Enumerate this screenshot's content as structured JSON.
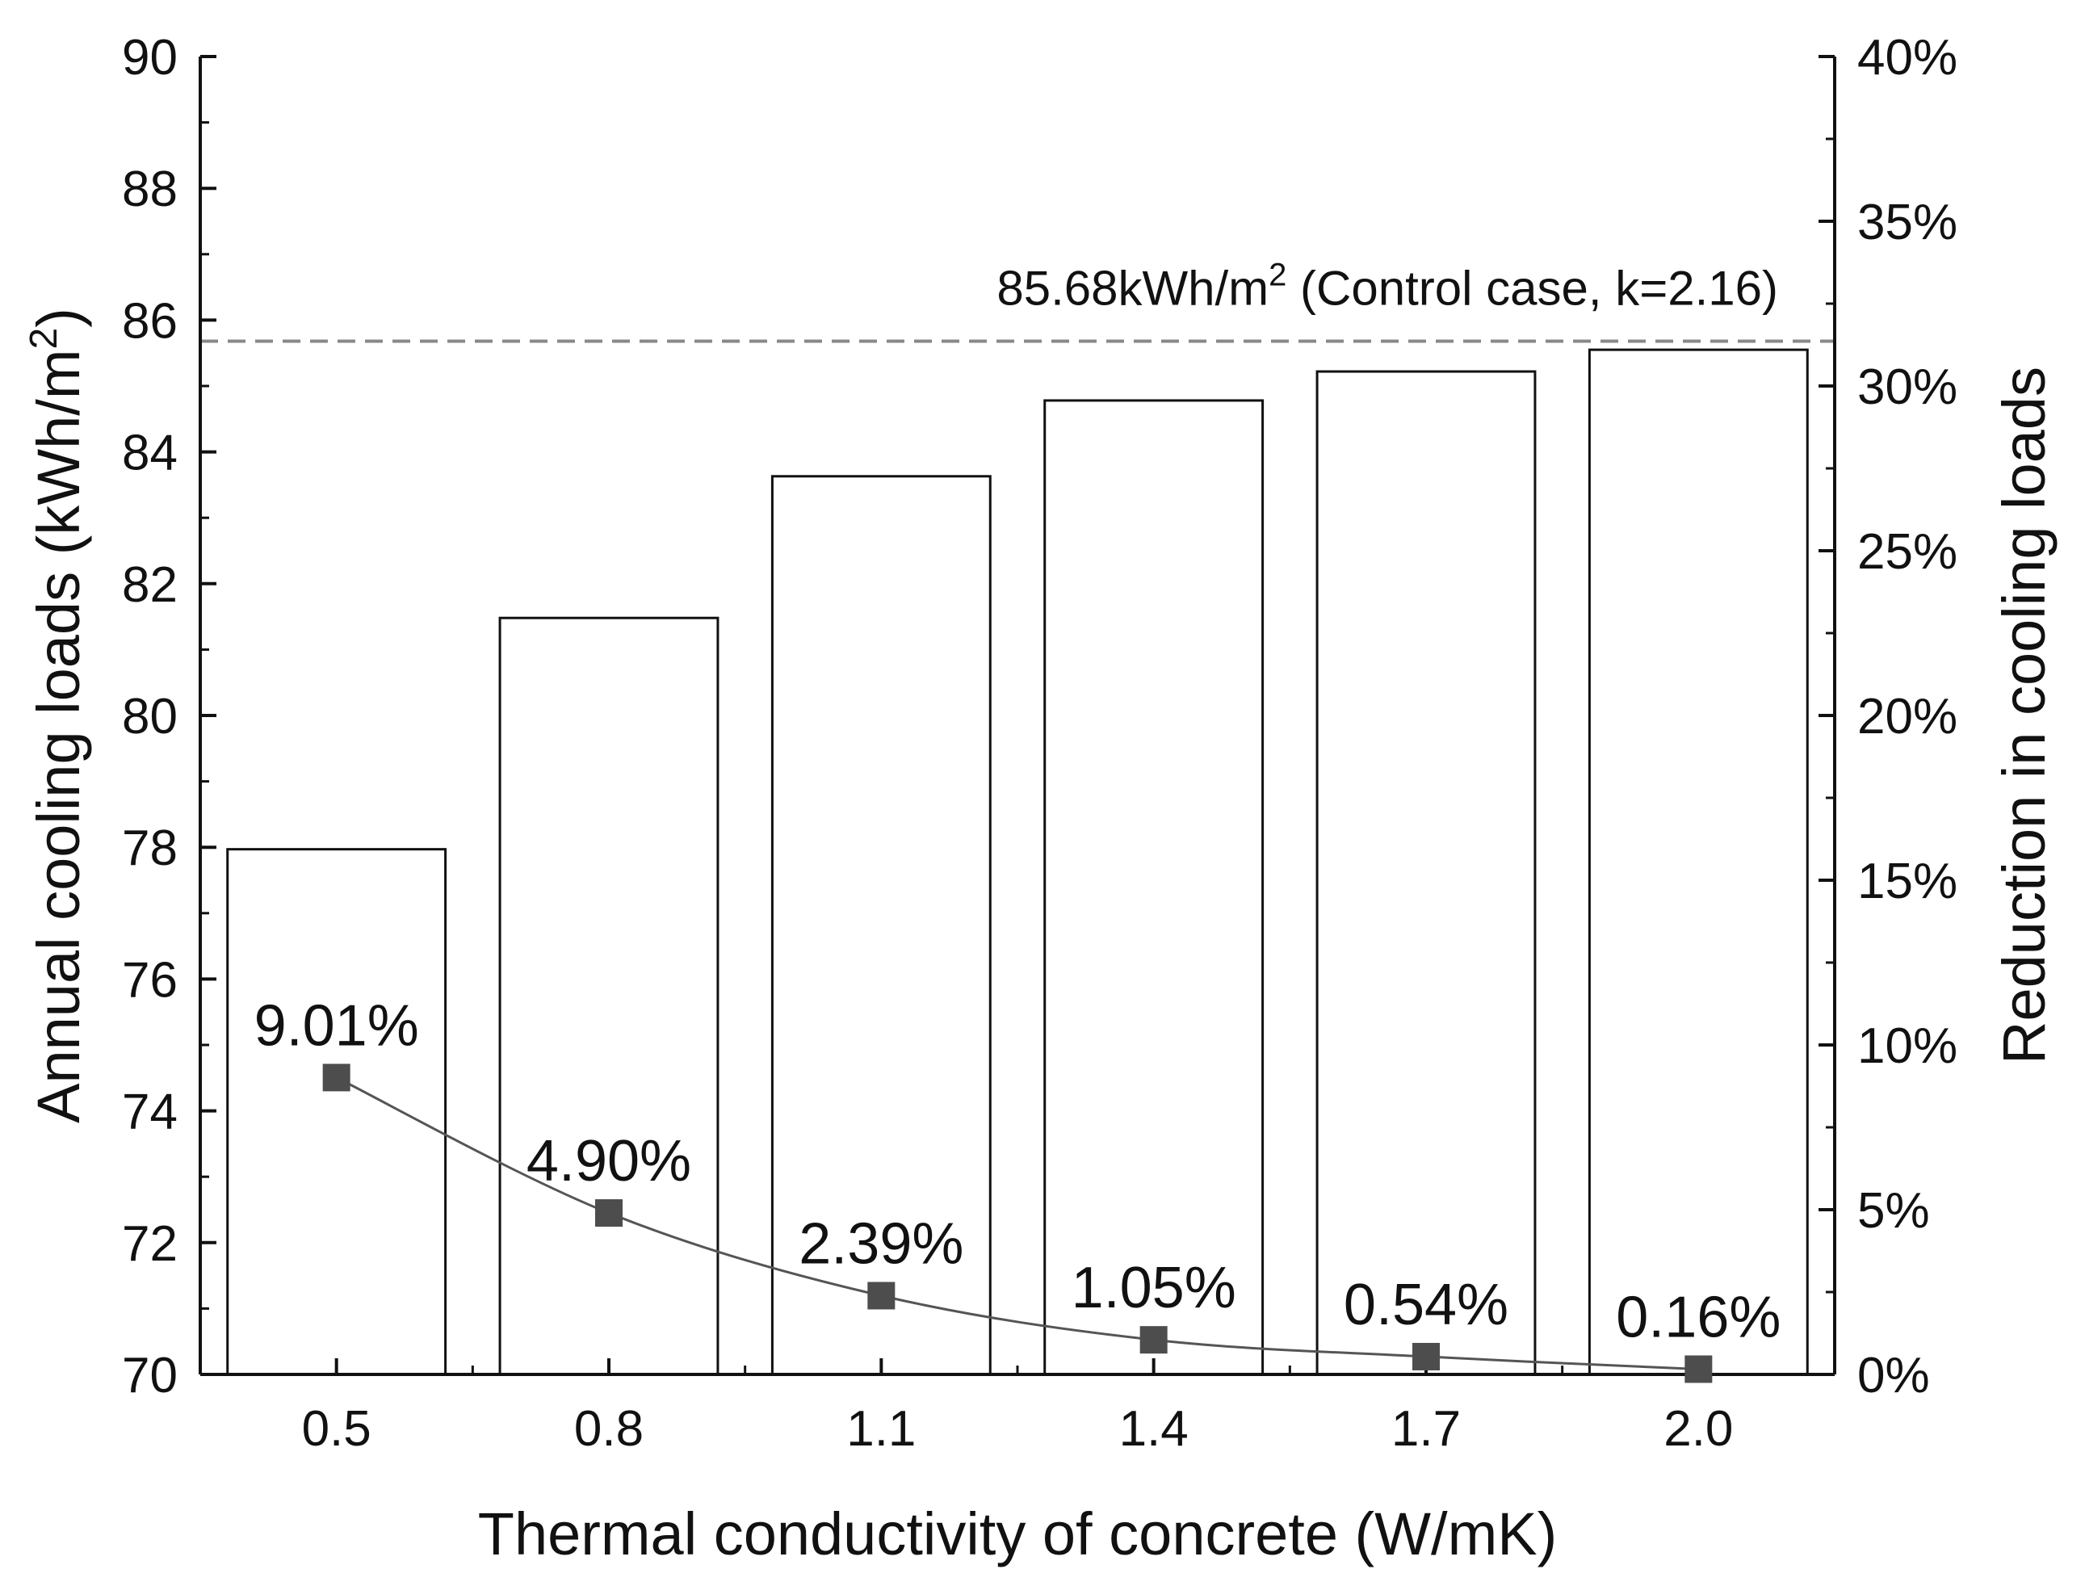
{
  "chart_data": {
    "type": "bar",
    "xlabel": "Thermal conductivity of concrete (W/mK)",
    "categories": [
      "0.5",
      "0.8",
      "1.1",
      "1.4",
      "1.7",
      "2.0"
    ],
    "series": [
      {
        "name": "Annual cooling loads",
        "type": "bar",
        "axis": "left",
        "values": [
          77.97,
          81.48,
          83.63,
          84.78,
          85.22,
          85.55
        ]
      },
      {
        "name": "Reduction in cooling loads",
        "type": "line",
        "axis": "right",
        "values": [
          9.01,
          4.9,
          2.39,
          1.05,
          0.54,
          0.16
        ],
        "labels": [
          "9.01%",
          "4.90%",
          "2.39%",
          "1.05%",
          "0.54%",
          "0.16%"
        ]
      }
    ],
    "y_left": {
      "label_main": "Annual cooling loads (kWh/m",
      "label_sup": "2",
      "label_end": ")",
      "range": [
        70,
        90
      ],
      "ticks": [
        70,
        72,
        74,
        76,
        78,
        80,
        82,
        84,
        86,
        88,
        90
      ],
      "tick_labels": [
        "70",
        "72",
        "74",
        "76",
        "78",
        "80",
        "82",
        "84",
        "86",
        "88",
        "90"
      ]
    },
    "y_right": {
      "label": "Reduction in cooling loads",
      "range": [
        0,
        40
      ],
      "ticks": [
        0,
        5,
        10,
        15,
        20,
        25,
        30,
        35,
        40
      ],
      "tick_labels": [
        "0%",
        "5%",
        "10%",
        "15%",
        "20%",
        "25%",
        "30%",
        "35%",
        "40%"
      ]
    },
    "reference_line": {
      "value": 85.68,
      "label_main": "85.68kWh/m",
      "label_sup": "2",
      "label_end": " (Control case, k=2.16)"
    },
    "colors": {
      "bar_fill": "#ffffff",
      "bar_stroke": "#111111",
      "marker": "#4d4d4d",
      "line": "#555555",
      "reference": "#888888",
      "axis": "#111111"
    }
  }
}
